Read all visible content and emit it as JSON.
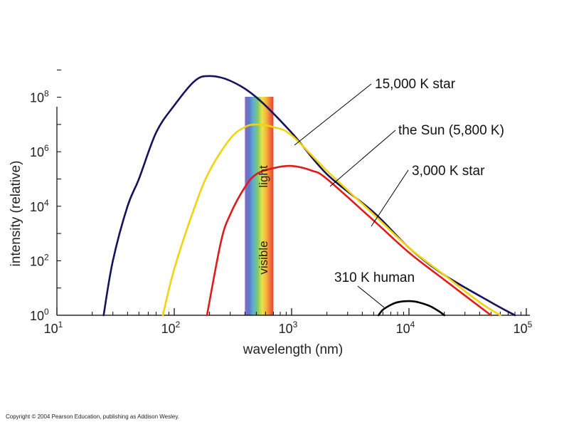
{
  "chart_data": {
    "type": "line",
    "xscale": "log",
    "yscale": "log",
    "xlabel": "wavelength (nm)",
    "ylabel": "intensity (relative)",
    "xlim": [
      10,
      100000
    ],
    "ylim": [
      1,
      10000000000
    ],
    "xticks": [
      {
        "base": "10",
        "exp": "1",
        "value": 10
      },
      {
        "base": "10",
        "exp": "2",
        "value": 100
      },
      {
        "base": "10",
        "exp": "3",
        "value": 1000
      },
      {
        "base": "10",
        "exp": "4",
        "value": 10000
      },
      {
        "base": "10",
        "exp": "5",
        "value": 100000
      }
    ],
    "yticks": [
      {
        "base": "10",
        "exp": "0",
        "value": 1
      },
      {
        "base": "10",
        "exp": "2",
        "value": 100
      },
      {
        "base": "10",
        "exp": "4",
        "value": 10000
      },
      {
        "base": "10",
        "exp": "6",
        "value": 1000000
      },
      {
        "base": "10",
        "exp": "8",
        "value": 100000000
      }
    ],
    "visible_band": {
      "range": [
        400,
        700
      ],
      "label_top": "light",
      "label_bottom": "visible"
    },
    "series": [
      {
        "name": "15,000 K star",
        "color": "#14145a",
        "x": [
          25,
          30,
          40,
          50,
          70,
          100,
          150,
          200,
          300,
          500,
          1000,
          2000,
          5000,
          10000,
          20000,
          50000,
          80000
        ],
        "y": [
          1,
          100,
          10000,
          100000,
          5000000,
          50000000,
          400000000,
          600000000,
          400000000,
          100000000,
          5000000,
          150000,
          6000,
          300,
          30,
          3,
          1
        ]
      },
      {
        "name": "the Sun (5,800 K)",
        "color": "#f2d30f",
        "x": [
          80,
          100,
          150,
          200,
          300,
          400,
          500,
          700,
          1000,
          2000,
          5000,
          10000,
          20000,
          40000,
          60000
        ],
        "y": [
          1,
          50,
          10000,
          200000,
          3000000,
          8000000,
          10000000,
          8000000,
          4000000,
          200000,
          5000,
          300,
          30,
          3,
          1
        ]
      },
      {
        "name": "3,000 K star",
        "color": "#e01b1b",
        "x": [
          190,
          250,
          300,
          400,
          500,
          700,
          1000,
          1500,
          2000,
          5000,
          10000,
          20000,
          50000
        ],
        "y": [
          1,
          500,
          5000,
          50000,
          150000,
          250000,
          300000,
          200000,
          100000,
          3000,
          200,
          20,
          1
        ]
      },
      {
        "name": "310 K human",
        "color": "#000000",
        "x": [
          5500,
          6000,
          7000,
          8000,
          10000,
          12000,
          15000,
          18000,
          20000
        ],
        "y": [
          1,
          1.6,
          2.4,
          3.0,
          3.3,
          3.0,
          2.2,
          1.4,
          1
        ]
      }
    ]
  },
  "footer": {
    "copyright": "Copyright © 2004 Pearson Education, publishing as Addison Wesley."
  }
}
